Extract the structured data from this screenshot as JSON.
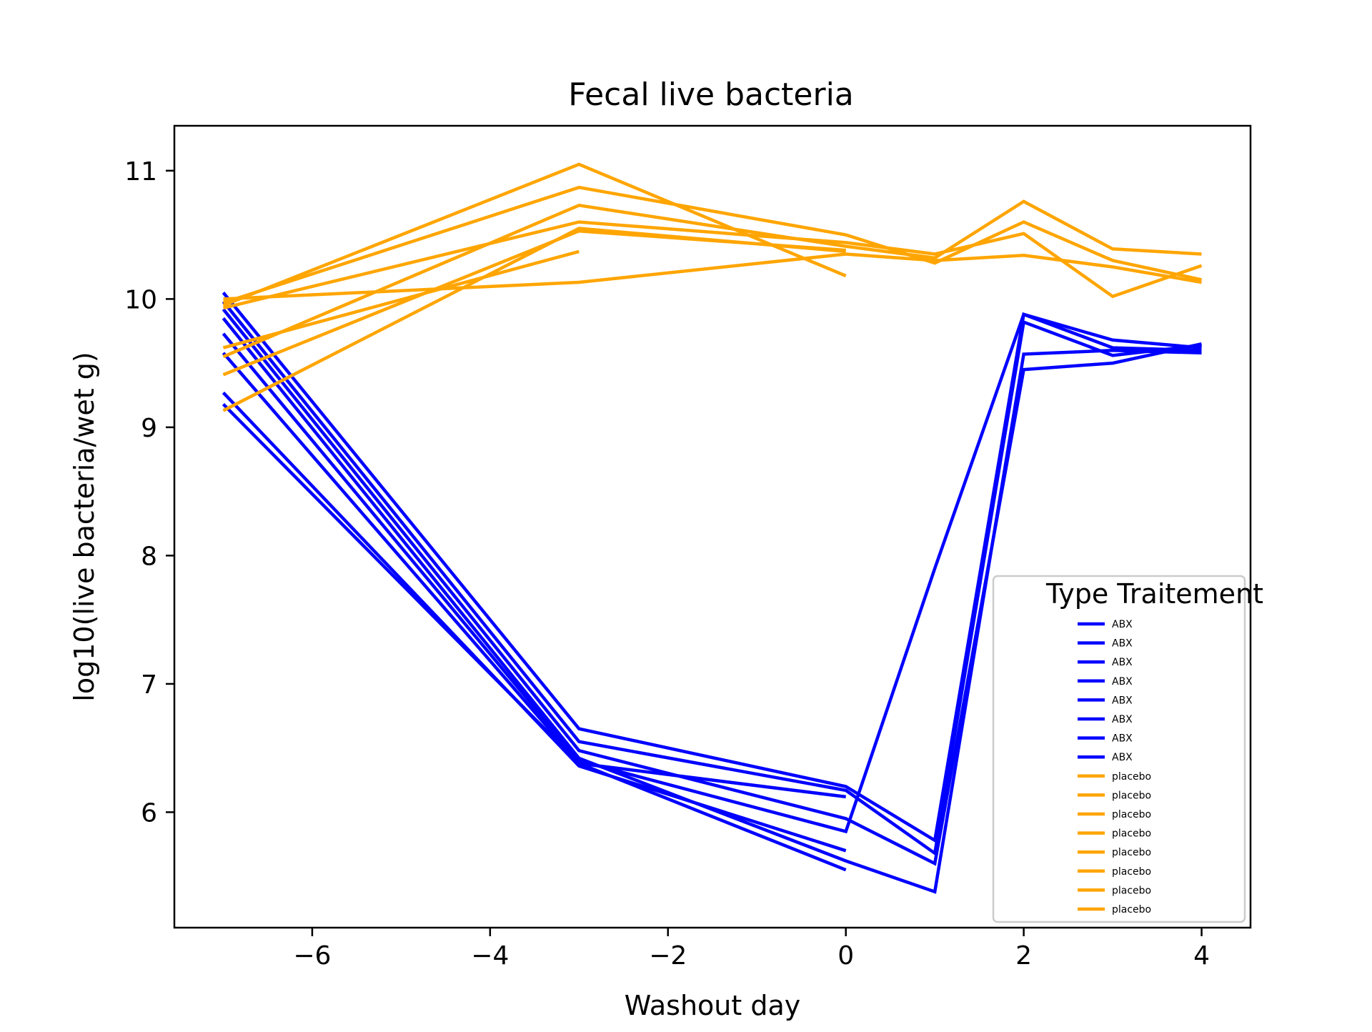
{
  "chart_data": {
    "type": "line",
    "title": "Fecal live bacteria",
    "xlabel": "Washout day",
    "ylabel": "log10(live bacteria/wet g)",
    "xlim": [
      -7.55,
      4.55
    ],
    "ylim": [
      5.1,
      11.35
    ],
    "x_ticks": [
      -6,
      -4,
      -2,
      0,
      2,
      4
    ],
    "x_tick_labels": [
      "−6",
      "−4",
      "−2",
      "0",
      "2",
      "4"
    ],
    "y_ticks": [
      6,
      7,
      8,
      9,
      10,
      11
    ],
    "y_tick_labels": [
      "6",
      "7",
      "8",
      "9",
      "10",
      "11"
    ],
    "grid": false,
    "legend": {
      "title": "Type Traitement",
      "placement": "lower-right",
      "entries": [
        "ABX",
        "ABX",
        "ABX",
        "ABX",
        "ABX",
        "ABX",
        "ABX",
        "ABX",
        "placebo",
        "placebo",
        "placebo",
        "placebo",
        "placebo",
        "placebo",
        "placebo",
        "placebo"
      ]
    },
    "colors": {
      "ABX": "#0000ff",
      "placebo": "#ffa500"
    },
    "series": [
      {
        "name": "ABX",
        "x": [
          -7,
          -3,
          0,
          1,
          2,
          3,
          4
        ],
        "y": [
          10.05,
          6.65,
          6.2,
          5.78,
          9.88,
          9.68,
          9.62
        ]
      },
      {
        "name": "ABX",
        "x": [
          -7,
          -3,
          0,
          1,
          2,
          3,
          4
        ],
        "y": [
          9.98,
          6.55,
          6.17,
          5.68,
          9.82,
          9.56,
          9.64
        ]
      },
      {
        "name": "ABX",
        "x": [
          -7,
          -3,
          0,
          1,
          2,
          3,
          4
        ],
        "y": [
          9.92,
          6.48,
          5.95,
          5.6,
          9.45,
          9.5,
          9.65
        ]
      },
      {
        "name": "ABX",
        "x": [
          -7,
          -3,
          0,
          1,
          2,
          3,
          4
        ],
        "y": [
          9.85,
          6.42,
          5.62,
          5.38,
          9.57,
          9.6,
          9.58
        ]
      },
      {
        "name": "ABX",
        "x": [
          -7,
          -3,
          0,
          1,
          2,
          3,
          4
        ],
        "y": [
          9.73,
          6.4,
          5.85,
          7.9,
          9.88,
          9.62,
          9.6
        ]
      },
      {
        "name": "ABX",
        "x": [
          -7,
          -3,
          0
        ],
        "y": [
          9.58,
          6.38,
          6.12
        ]
      },
      {
        "name": "ABX",
        "x": [
          -7,
          -3,
          0
        ],
        "y": [
          9.27,
          6.36,
          5.7
        ]
      },
      {
        "name": "ABX",
        "x": [
          -7,
          -3,
          0
        ],
        "y": [
          9.18,
          6.38,
          5.55
        ]
      },
      {
        "name": "placebo",
        "x": [
          -7,
          -3,
          0
        ],
        "y": [
          9.95,
          11.05,
          10.18
        ]
      },
      {
        "name": "placebo",
        "x": [
          -7,
          -3,
          0,
          1,
          2,
          3,
          4
        ],
        "y": [
          9.97,
          10.87,
          10.5,
          10.28,
          10.6,
          10.3,
          10.15
        ]
      },
      {
        "name": "placebo",
        "x": [
          -7,
          -3,
          0,
          1,
          2,
          3,
          4
        ],
        "y": [
          9.93,
          10.6,
          10.44,
          10.35,
          10.51,
          10.02,
          10.26
        ]
      },
      {
        "name": "placebo",
        "x": [
          -7,
          -3,
          0,
          1,
          2,
          3,
          4
        ],
        "y": [
          10.0,
          10.13,
          10.35,
          10.3,
          10.34,
          10.25,
          10.13
        ]
      },
      {
        "name": "placebo",
        "x": [
          -7,
          -3,
          0,
          1,
          2,
          3,
          4
        ],
        "y": [
          9.55,
          10.73,
          10.41,
          10.32,
          10.76,
          10.39,
          10.35
        ]
      },
      {
        "name": "placebo",
        "x": [
          -7,
          -3
        ],
        "y": [
          9.62,
          10.37
        ]
      },
      {
        "name": "placebo",
        "x": [
          -7,
          -3,
          0
        ],
        "y": [
          9.41,
          10.53,
          10.38
        ]
      },
      {
        "name": "placebo",
        "x": [
          -7,
          -3,
          0
        ],
        "y": [
          9.13,
          10.55,
          10.37
        ]
      }
    ]
  }
}
